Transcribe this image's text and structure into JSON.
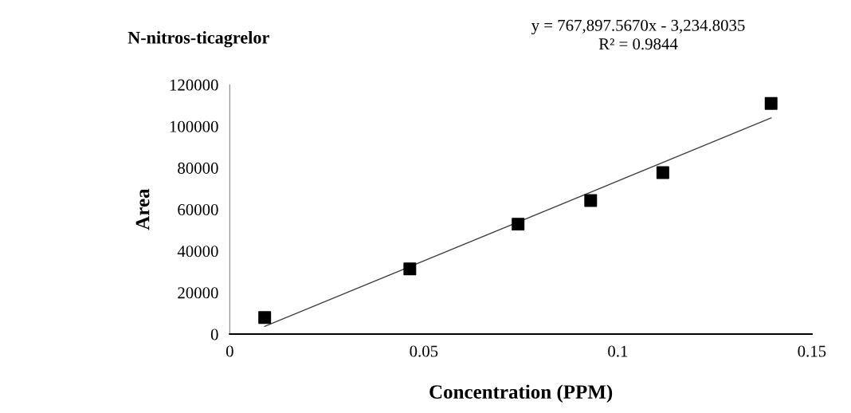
{
  "chart_data": {
    "type": "scatter",
    "title": "N-nitros-ticagrelor",
    "xlabel": "Concentration (PPM)",
    "ylabel": "Area",
    "annotations": [
      "y = 767,897.5670x - 3,234.8035",
      "R² = 0.9844"
    ],
    "series": [
      {
        "color": "#000000",
        "marker": "square",
        "x": [
          0.009,
          0.0464,
          0.0743,
          0.093,
          0.1116,
          0.1395
        ],
        "values": [
          8000,
          31400,
          52900,
          64300,
          77700,
          111000
        ]
      },
      {
        "type": "line",
        "color": "#404040",
        "marker": "none",
        "line_style": "solid",
        "x": [
          0.009,
          0.1395
        ],
        "values": [
          3700,
          104000
        ]
      }
    ],
    "xlim": [
      0,
      0.15
    ],
    "xticks": [
      0,
      0.05,
      0.1,
      0.15
    ],
    "ylim": [
      0,
      120000
    ],
    "yticks": [
      0,
      20000,
      40000,
      60000,
      80000,
      100000,
      120000
    ],
    "grid": false,
    "legend": false
  }
}
